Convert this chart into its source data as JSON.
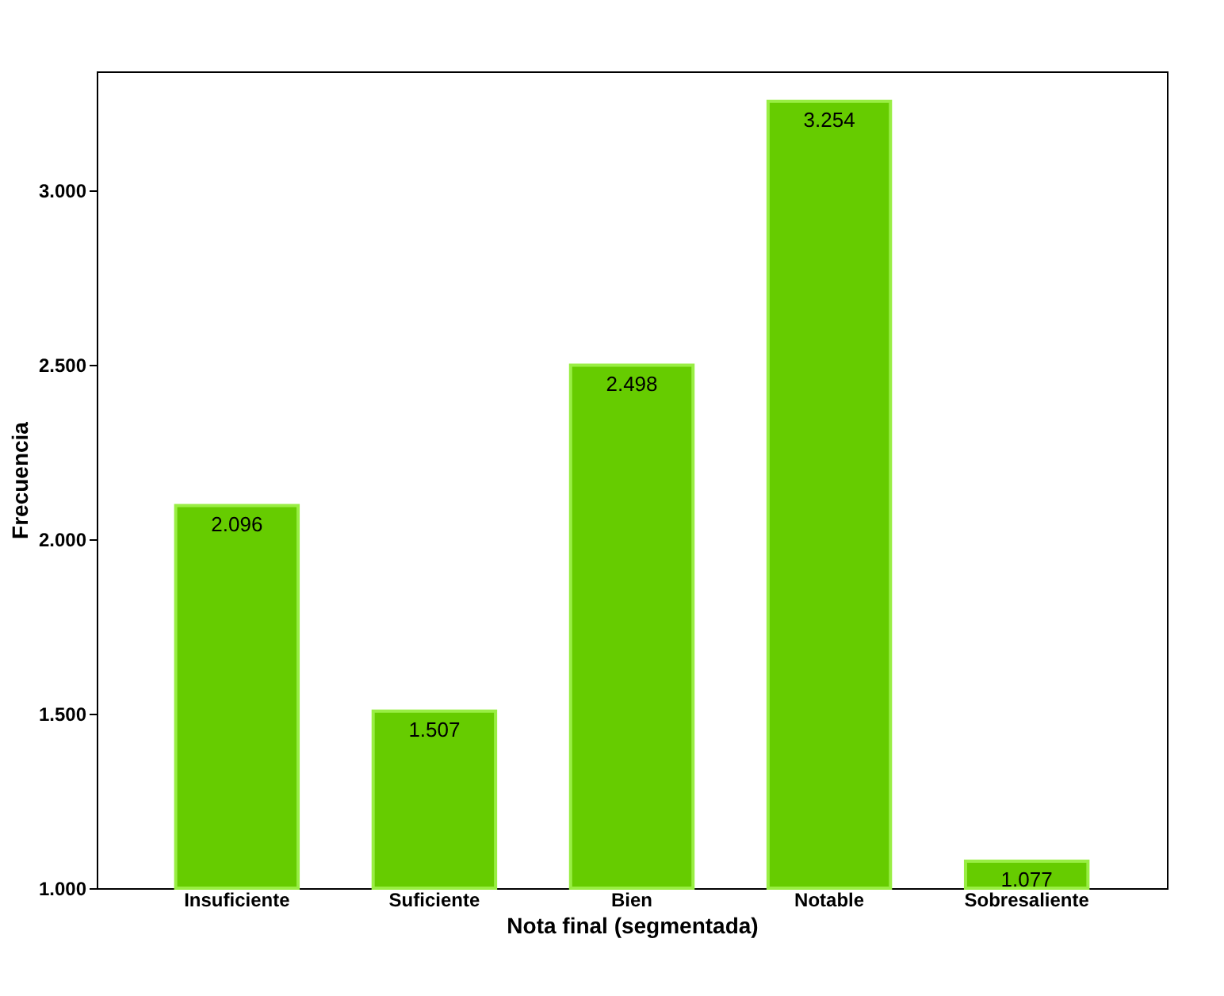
{
  "chart_data": {
    "type": "bar",
    "xlabel": "Nota final (segmentada)",
    "ylabel": "Frecuencia",
    "categories": [
      "Insuficiente",
      "Suficiente",
      "Bien",
      "Notable",
      "Sobresaliente"
    ],
    "values": [
      2096,
      1507,
      2498,
      3254,
      1077
    ],
    "value_labels": [
      "2.096",
      "1.507",
      "2.498",
      "3.254",
      "1.077"
    ],
    "color": "#66cc00",
    "ylim": [
      1000,
      3340
    ],
    "yticks": [
      {
        "value": 1000,
        "label": "1.000"
      },
      {
        "value": 1500,
        "label": "1.500"
      },
      {
        "value": 2000,
        "label": "2.000"
      },
      {
        "value": 2500,
        "label": "2.500"
      },
      {
        "value": 3000,
        "label": "3.000"
      }
    ],
    "grid": false
  }
}
